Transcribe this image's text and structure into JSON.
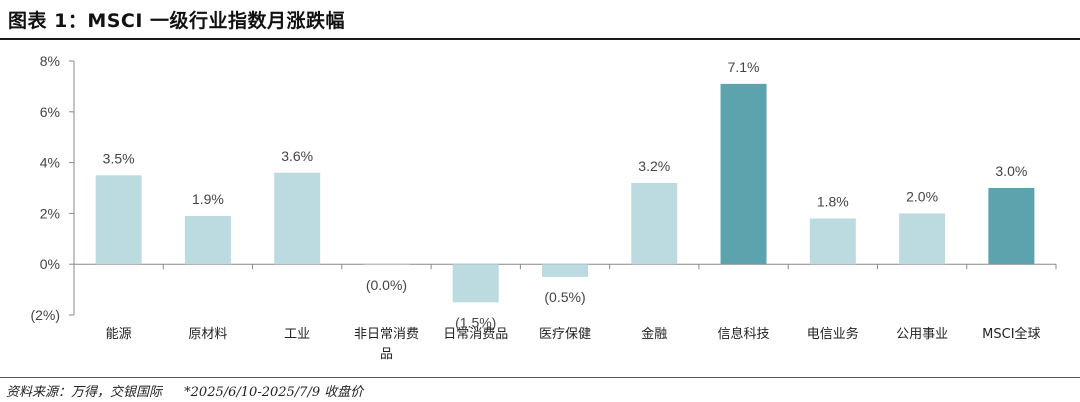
{
  "title": "图表 1：MSCI 一级行业指数月涨跌幅",
  "source": {
    "label": "资料来源：万得，交银国际",
    "note": "*2025/6/10-2025/7/9 收盘价"
  },
  "colors": {
    "light_bar": "#bcdbe0",
    "dark_bar": "#5ca3ad",
    "axis": "#888888"
  },
  "chart_data": {
    "type": "bar",
    "title": "",
    "xlabel": "",
    "ylabel": "",
    "ylim": [
      -2,
      8
    ],
    "yticks": [
      -2,
      0,
      2,
      4,
      6,
      8
    ],
    "ytick_labels": [
      "(2%)",
      "0%",
      "2%",
      "4%",
      "6%",
      "8%"
    ],
    "grid": false,
    "categories": [
      "能源",
      "原材料",
      "工业",
      "非日常消费品",
      "日常消费品",
      "医疗保健",
      "金融",
      "信息科技",
      "电信业务",
      "公用事业",
      "MSCI全球"
    ],
    "category_lines": [
      [
        "能源"
      ],
      [
        "原材料"
      ],
      [
        "工业"
      ],
      [
        "非日常消费",
        "品"
      ],
      [
        "日常消费品"
      ],
      [
        "医疗保健"
      ],
      [
        "金融"
      ],
      [
        "信息科技"
      ],
      [
        "电信业务"
      ],
      [
        "公用事业"
      ],
      [
        "MSCI全球"
      ]
    ],
    "values": [
      3.5,
      1.9,
      3.6,
      -0.0,
      -1.5,
      -0.5,
      3.2,
      7.1,
      1.8,
      2.0,
      3.0
    ],
    "data_labels": [
      "3.5%",
      "1.9%",
      "3.6%",
      "(0.0%)",
      "(1.5%)",
      "(0.5%)",
      "3.2%",
      "7.1%",
      "1.8%",
      "2.0%",
      "3.0%"
    ],
    "highlight": [
      false,
      false,
      false,
      false,
      false,
      false,
      false,
      true,
      false,
      false,
      true
    ]
  }
}
